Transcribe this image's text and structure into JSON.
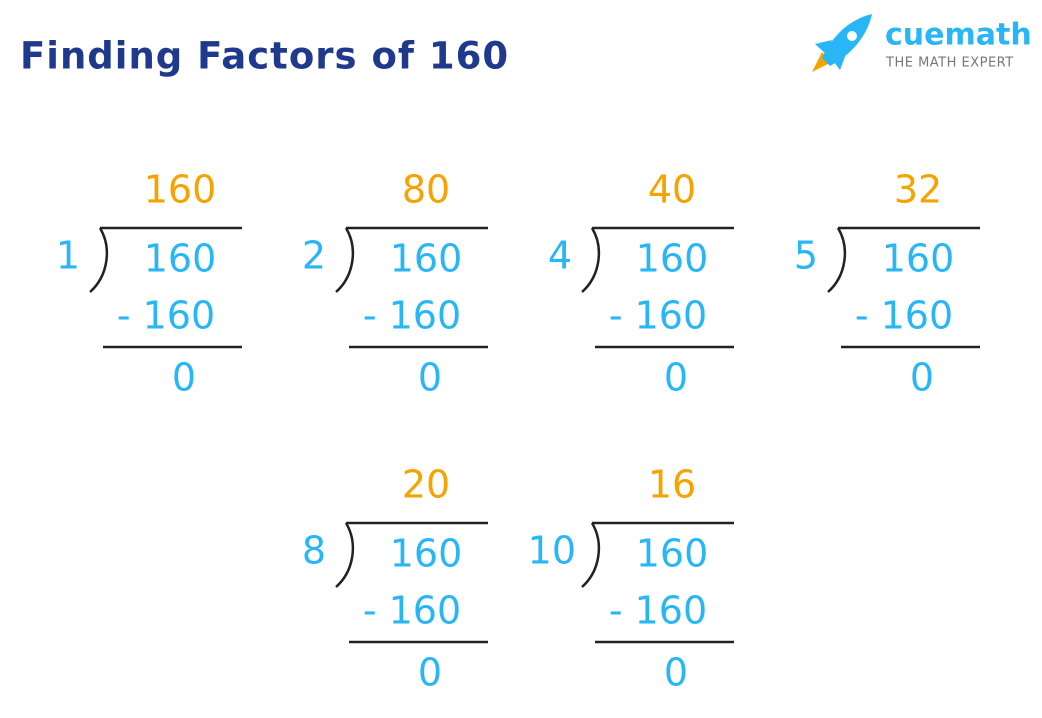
{
  "header": {
    "title": "Finding Factors of 160"
  },
  "logo": {
    "brand": "cuemath",
    "tagline": "THE MATH EXPERT"
  },
  "divisions": [
    {
      "divisor": "1",
      "quotient": "160",
      "dividend": "160",
      "subtracted": "- 160",
      "remainder": "0"
    },
    {
      "divisor": "2",
      "quotient": "80",
      "dividend": "160",
      "subtracted": "- 160",
      "remainder": "0"
    },
    {
      "divisor": "4",
      "quotient": "40",
      "dividend": "160",
      "subtracted": "- 160",
      "remainder": "0"
    },
    {
      "divisor": "5",
      "quotient": "32",
      "dividend": "160",
      "subtracted": "- 160",
      "remainder": "0"
    },
    {
      "divisor": "8",
      "quotient": "20",
      "dividend": "160",
      "subtracted": "- 160",
      "remainder": "0"
    },
    {
      "divisor": "10",
      "quotient": "16",
      "dividend": "160",
      "subtracted": "- 160",
      "remainder": "0"
    }
  ]
}
